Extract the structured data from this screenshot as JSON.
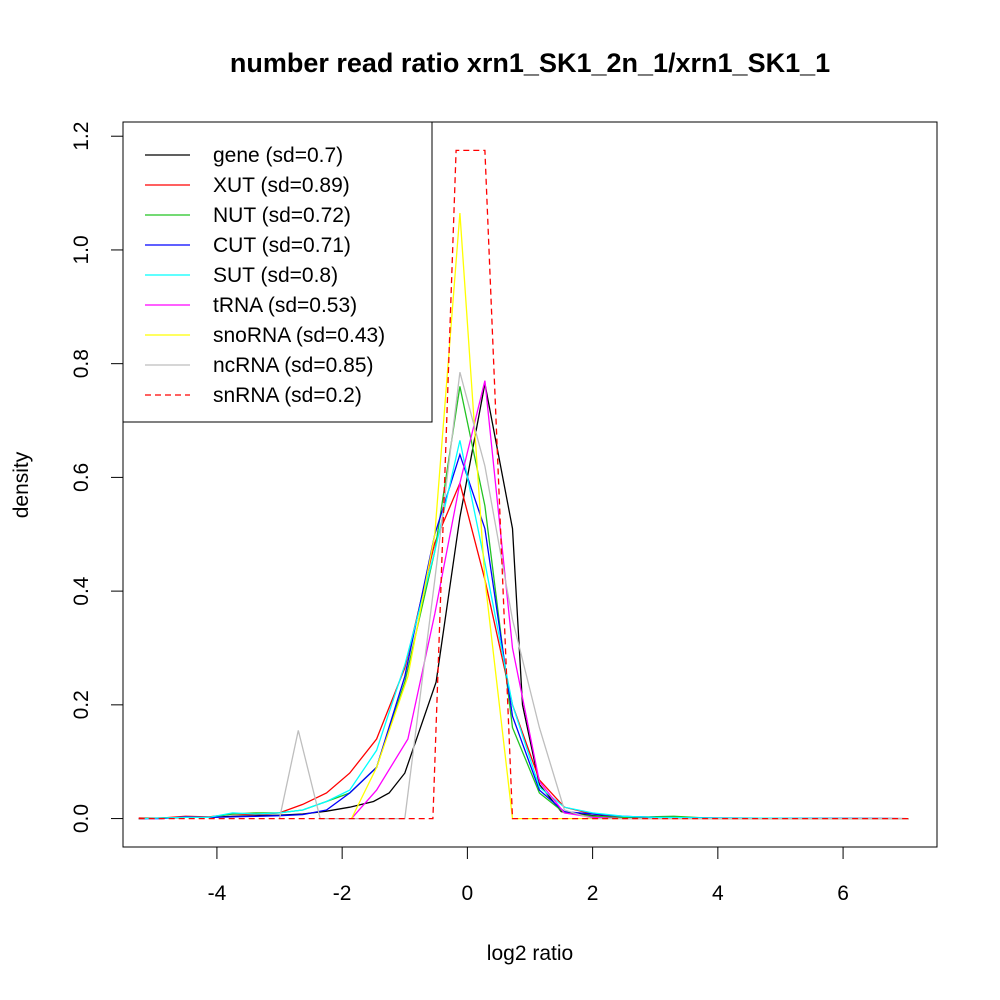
{
  "chart_data": {
    "type": "line",
    "title": "number read ratio xrn1_SK1_2n_1/xrn1_SK1_1",
    "xlabel": "log2 ratio",
    "ylabel": "density",
    "xlim": [
      -5.5,
      7.5
    ],
    "ylim": [
      -0.05,
      1.225
    ],
    "x_ticks": [
      "-4",
      "-2",
      "0",
      "2",
      "4",
      "6"
    ],
    "x_tick_values": [
      -4,
      -2,
      0,
      2,
      4,
      6
    ],
    "y_ticks": [
      "0.0",
      "0.2",
      "0.4",
      "0.6",
      "0.8",
      "1.0",
      "1.2"
    ],
    "y_tick_values": [
      0,
      0.2,
      0.4,
      0.6,
      0.8,
      1.0,
      1.2
    ],
    "legend_position": "top-left",
    "series": [
      {
        "name": "gene (sd=0.7)",
        "color": "#000000",
        "dash": false,
        "points": [
          [
            -5.25,
            0.0
          ],
          [
            -4.88,
            0.001
          ],
          [
            -4.5,
            0.002
          ],
          [
            -4.13,
            0.002
          ],
          [
            -3.75,
            0.004
          ],
          [
            -3.38,
            0.005
          ],
          [
            -3.0,
            0.006
          ],
          [
            -2.63,
            0.008
          ],
          [
            -2.25,
            0.013
          ],
          [
            -1.88,
            0.02
          ],
          [
            -1.5,
            0.03
          ],
          [
            -1.25,
            0.045
          ],
          [
            -1.0,
            0.08
          ],
          [
            -0.5,
            0.24
          ],
          [
            -0.12,
            0.53
          ],
          [
            0.28,
            0.765
          ],
          [
            0.72,
            0.51
          ],
          [
            0.88,
            0.2
          ],
          [
            1.15,
            0.06
          ],
          [
            1.5,
            0.012
          ],
          [
            2.0,
            0.005
          ],
          [
            2.5,
            0.002
          ],
          [
            3.0,
            0.001
          ],
          [
            4.0,
            0.0
          ],
          [
            7.05,
            0.0
          ]
        ]
      },
      {
        "name": "XUT (sd=0.89)",
        "color": "#ff0000",
        "dash": false,
        "points": [
          [
            -5.25,
            0.001
          ],
          [
            -4.88,
            0.001
          ],
          [
            -4.5,
            0.004
          ],
          [
            -4.13,
            0.003
          ],
          [
            -3.75,
            0.008
          ],
          [
            -3.38,
            0.007
          ],
          [
            -3.0,
            0.01
          ],
          [
            -2.63,
            0.025
          ],
          [
            -2.25,
            0.045
          ],
          [
            -1.88,
            0.08
          ],
          [
            -1.45,
            0.14
          ],
          [
            -1.0,
            0.265
          ],
          [
            -0.52,
            0.485
          ],
          [
            -0.12,
            0.59
          ],
          [
            0.28,
            0.42
          ],
          [
            0.72,
            0.2
          ],
          [
            1.15,
            0.068
          ],
          [
            1.55,
            0.02
          ],
          [
            2.0,
            0.008
          ],
          [
            2.5,
            0.003
          ],
          [
            3.0,
            0.002
          ],
          [
            4.0,
            0.001
          ],
          [
            7.05,
            0.0
          ]
        ]
      },
      {
        "name": "NUT (sd=0.72)",
        "color": "#22c322",
        "dash": false,
        "points": [
          [
            -5.25,
            0.0
          ],
          [
            -4.88,
            0.001
          ],
          [
            -4.5,
            0.002
          ],
          [
            -4.13,
            0.002
          ],
          [
            -3.75,
            0.008
          ],
          [
            -3.38,
            0.01
          ],
          [
            -3.0,
            0.01
          ],
          [
            -2.63,
            0.015
          ],
          [
            -2.25,
            0.03
          ],
          [
            -1.88,
            0.045
          ],
          [
            -1.45,
            0.09
          ],
          [
            -1.0,
            0.24
          ],
          [
            -0.52,
            0.47
          ],
          [
            -0.12,
            0.76
          ],
          [
            0.28,
            0.55
          ],
          [
            0.72,
            0.16
          ],
          [
            1.15,
            0.045
          ],
          [
            1.55,
            0.01
          ],
          [
            2.0,
            0.004
          ],
          [
            2.5,
            0.002
          ],
          [
            3.3,
            0.004
          ],
          [
            4.0,
            0.0
          ],
          [
            7.05,
            0.0
          ]
        ]
      },
      {
        "name": "CUT (sd=0.71)",
        "color": "#0000ff",
        "dash": false,
        "points": [
          [
            -5.25,
            0.0
          ],
          [
            -4.88,
            0.0
          ],
          [
            -4.5,
            0.003
          ],
          [
            -4.13,
            0.002
          ],
          [
            -3.75,
            0.003
          ],
          [
            -3.38,
            0.004
          ],
          [
            -3.0,
            0.005
          ],
          [
            -2.63,
            0.007
          ],
          [
            -2.25,
            0.015
          ],
          [
            -1.88,
            0.045
          ],
          [
            -1.45,
            0.09
          ],
          [
            -1.0,
            0.25
          ],
          [
            -0.52,
            0.5
          ],
          [
            -0.12,
            0.64
          ],
          [
            0.28,
            0.51
          ],
          [
            0.72,
            0.18
          ],
          [
            1.15,
            0.05
          ],
          [
            1.55,
            0.012
          ],
          [
            2.0,
            0.008
          ],
          [
            2.5,
            0.004
          ],
          [
            3.0,
            0.002
          ],
          [
            4.0,
            0.001
          ],
          [
            7.05,
            0.0
          ]
        ]
      },
      {
        "name": "SUT (sd=0.8)",
        "color": "#00ffff",
        "dash": false,
        "points": [
          [
            -5.25,
            0.0
          ],
          [
            -4.88,
            0.001
          ],
          [
            -4.5,
            0.002
          ],
          [
            -4.13,
            0.002
          ],
          [
            -3.75,
            0.01
          ],
          [
            -3.38,
            0.008
          ],
          [
            -3.0,
            0.01
          ],
          [
            -2.63,
            0.015
          ],
          [
            -2.25,
            0.03
          ],
          [
            -1.88,
            0.05
          ],
          [
            -1.45,
            0.12
          ],
          [
            -1.0,
            0.27
          ],
          [
            -0.52,
            0.47
          ],
          [
            -0.12,
            0.665
          ],
          [
            0.28,
            0.45
          ],
          [
            0.72,
            0.2
          ],
          [
            1.15,
            0.055
          ],
          [
            1.55,
            0.02
          ],
          [
            2.0,
            0.01
          ],
          [
            2.5,
            0.004
          ],
          [
            3.0,
            0.002
          ],
          [
            4.0,
            0.001
          ],
          [
            7.05,
            0.0
          ]
        ]
      },
      {
        "name": "tRNA (sd=0.53)",
        "color": "#ff00ff",
        "dash": false,
        "points": [
          [
            -1.85,
            0.0
          ],
          [
            -1.45,
            0.05
          ],
          [
            -0.95,
            0.14
          ],
          [
            -0.52,
            0.36
          ],
          [
            -0.12,
            0.59
          ],
          [
            0.28,
            0.77
          ],
          [
            0.72,
            0.3
          ],
          [
            1.15,
            0.065
          ],
          [
            1.55,
            0.01
          ],
          [
            2.0,
            0.002
          ],
          [
            2.5,
            0.0
          ],
          [
            7.05,
            0.0
          ]
        ]
      },
      {
        "name": "snoRNA (sd=0.43)",
        "color": "#ffff00",
        "dash": false,
        "points": [
          [
            -1.85,
            0.0
          ],
          [
            -1.45,
            0.09
          ],
          [
            -0.95,
            0.25
          ],
          [
            -0.52,
            0.5
          ],
          [
            -0.12,
            1.065
          ],
          [
            0.28,
            0.42
          ],
          [
            0.72,
            0.0
          ],
          [
            7.05,
            0.0
          ]
        ]
      },
      {
        "name": "ncRNA (sd=0.85)",
        "color": "#bebebe",
        "dash": false,
        "points": [
          [
            -3.0,
            0.0
          ],
          [
            -2.7,
            0.155
          ],
          [
            -2.35,
            0.0
          ],
          [
            -1.0,
            0.0
          ],
          [
            -0.52,
            0.42
          ],
          [
            -0.12,
            0.785
          ],
          [
            0.28,
            0.62
          ],
          [
            0.72,
            0.35
          ],
          [
            1.15,
            0.16
          ],
          [
            1.55,
            0.015
          ],
          [
            2.0,
            0.0
          ],
          [
            7.05,
            0.0
          ]
        ]
      },
      {
        "name": "snRNA (sd=0.2)",
        "color": "#ff0000",
        "dash": true,
        "points": [
          [
            -5.25,
            0.0
          ],
          [
            -0.55,
            0.0
          ],
          [
            -0.18,
            1.175
          ],
          [
            0.28,
            1.175
          ],
          [
            0.72,
            0.0
          ],
          [
            7.05,
            0.0
          ]
        ]
      }
    ]
  }
}
